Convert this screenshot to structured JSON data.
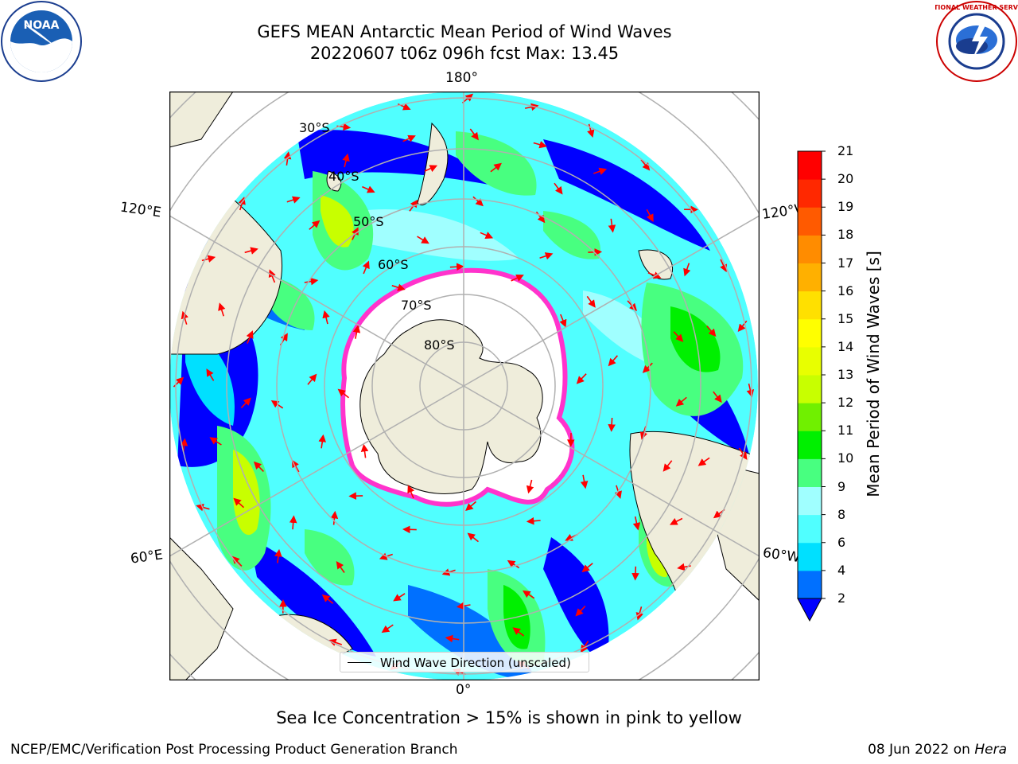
{
  "title": {
    "line1": "GEFS MEAN Antarctic Mean Period of Wind Waves",
    "line2": "20220607 t06z 096h fcst   Max: 13.45"
  },
  "logos": {
    "left": {
      "icon": "noaa-logo-icon",
      "text": "NOAA"
    },
    "right": {
      "icon": "nws-logo-icon",
      "text": "NATIONAL WEATHER SERVICE"
    }
  },
  "map": {
    "longitude_labels": {
      "top": "180°",
      "upper_left": "120°E",
      "upper_right": "120°W",
      "lower_left": "60°E",
      "lower_right": "60°W",
      "bottom": "0°"
    },
    "latitude_labels": [
      "30°S",
      "40°S",
      "50°S",
      "60°S",
      "70°S",
      "80°S"
    ],
    "legend": "Wind Wave Direction (unscaled)",
    "colors": {
      "land": "#efeddb",
      "sea_ice": "#ffffff",
      "ice_edge": "#ff33cc",
      "arrows": "#ff0000",
      "gridlines": "#b0b0b0"
    }
  },
  "colorbar": {
    "title": "Mean Period of Wind Waves [s]",
    "ticks": [
      "2",
      "4",
      "6",
      "8",
      "9",
      "10",
      "11",
      "12",
      "13",
      "14",
      "15",
      "16",
      "17",
      "18",
      "19",
      "20",
      "21"
    ],
    "colors": [
      "#0070ff",
      "#00e0ff",
      "#50ffff",
      "#a0ffff",
      "#48ff80",
      "#00f000",
      "#70f000",
      "#c8ff00",
      "#e8ff00",
      "#ffff00",
      "#ffe000",
      "#ffb000",
      "#ff8c00",
      "#ff5a00",
      "#ff2800",
      "#ff0000"
    ],
    "under_color": "#0000ff"
  },
  "notes": {
    "sea_ice": "Sea Ice Concentration > 15% is shown in pink to yellow"
  },
  "footer": {
    "left": "NCEP/EMC/Verification Post Processing Product Generation Branch",
    "right_date": "08 Jun 2022 on ",
    "right_host": "Hera"
  }
}
